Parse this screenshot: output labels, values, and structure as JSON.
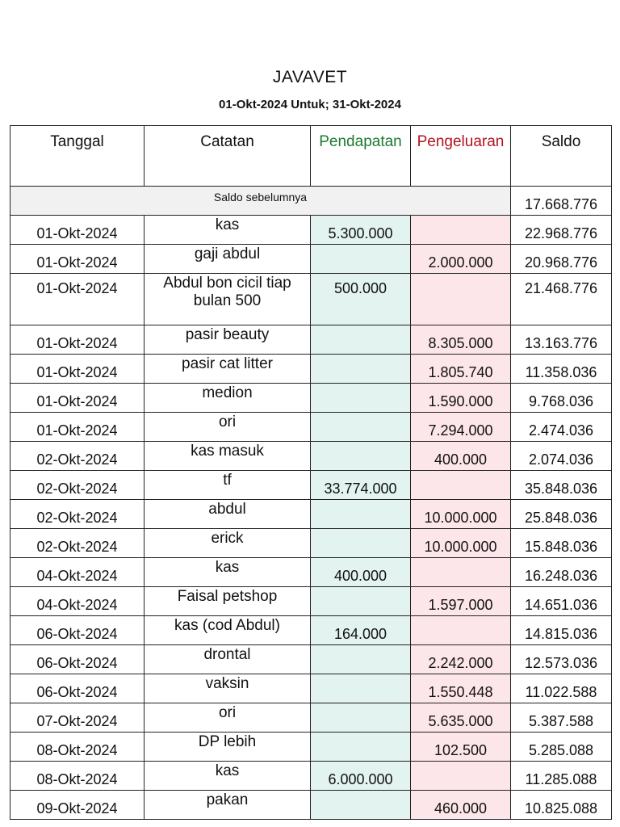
{
  "header": {
    "title": "JAVAVET",
    "subtitle": "01-Okt-2024 Untuk; 31-Okt-2024"
  },
  "columns": {
    "date": "Tanggal",
    "note": "Catatan",
    "income": "Pendapatan",
    "expense": "Pengeluaran",
    "balance": "Saldo"
  },
  "opening": {
    "label": "Saldo sebelumnya",
    "balance": "17.668.776"
  },
  "rows": [
    {
      "date": "01-Okt-2024",
      "note": "kas",
      "income": "5.300.000",
      "expense": "",
      "balance": "22.968.776"
    },
    {
      "date": "01-Okt-2024",
      "note": "gaji abdul",
      "income": "",
      "expense": "2.000.000",
      "balance": "20.968.776"
    },
    {
      "date": "01-Okt-2024",
      "note": "Abdul bon cicil tiap bulan 500",
      "income": "500.000",
      "expense": "",
      "balance": "21.468.776"
    },
    {
      "date": "01-Okt-2024",
      "note": "pasir beauty",
      "income": "",
      "expense": "8.305.000",
      "balance": "13.163.776"
    },
    {
      "date": "01-Okt-2024",
      "note": "pasir cat litter",
      "income": "",
      "expense": "1.805.740",
      "balance": "11.358.036"
    },
    {
      "date": "01-Okt-2024",
      "note": "medion",
      "income": "",
      "expense": "1.590.000",
      "balance": "9.768.036"
    },
    {
      "date": "01-Okt-2024",
      "note": "ori",
      "income": "",
      "expense": "7.294.000",
      "balance": "2.474.036"
    },
    {
      "date": "02-Okt-2024",
      "note": "kas masuk",
      "income": "",
      "expense": "400.000",
      "balance": "2.074.036"
    },
    {
      "date": "02-Okt-2024",
      "note": "tf",
      "income": "33.774.000",
      "expense": "",
      "balance": "35.848.036"
    },
    {
      "date": "02-Okt-2024",
      "note": "abdul",
      "income": "",
      "expense": "10.000.000",
      "balance": "25.848.036"
    },
    {
      "date": "02-Okt-2024",
      "note": "erick",
      "income": "",
      "expense": "10.000.000",
      "balance": "15.848.036"
    },
    {
      "date": "04-Okt-2024",
      "note": "kas",
      "income": "400.000",
      "expense": "",
      "balance": "16.248.036"
    },
    {
      "date": "04-Okt-2024",
      "note": "Faisal petshop",
      "income": "",
      "expense": "1.597.000",
      "balance": "14.651.036"
    },
    {
      "date": "06-Okt-2024",
      "note": "kas (cod Abdul)",
      "income": "164.000",
      "expense": "",
      "balance": "14.815.036"
    },
    {
      "date": "06-Okt-2024",
      "note": "drontal",
      "income": "",
      "expense": "2.242.000",
      "balance": "12.573.036"
    },
    {
      "date": "06-Okt-2024",
      "note": "vaksin",
      "income": "",
      "expense": "1.550.448",
      "balance": "11.022.588"
    },
    {
      "date": "07-Okt-2024",
      "note": "ori",
      "income": "",
      "expense": "5.635.000",
      "balance": "5.387.588"
    },
    {
      "date": "08-Okt-2024",
      "note": "DP lebih",
      "income": "",
      "expense": "102.500",
      "balance": "5.285.088"
    },
    {
      "date": "08-Okt-2024",
      "note": "kas",
      "income": "6.000.000",
      "expense": "",
      "balance": "11.285.088"
    },
    {
      "date": "09-Okt-2024",
      "note": "pakan",
      "income": "",
      "expense": "460.000",
      "balance": "10.825.088"
    }
  ],
  "colors": {
    "income_header": "#1e7a2e",
    "expense_header": "#b3121f",
    "income_cell": "#e2f3f0",
    "expense_cell": "#fde6ea"
  }
}
